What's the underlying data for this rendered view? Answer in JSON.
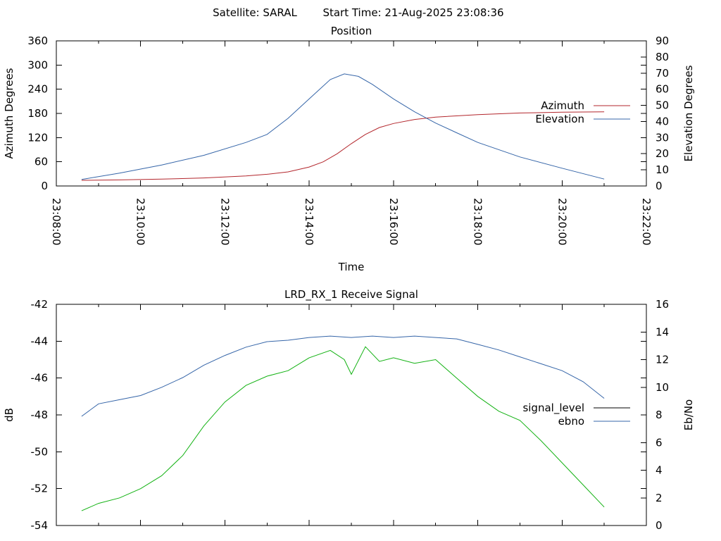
{
  "header": {
    "satellite_label": "Satellite: SARAL",
    "start_time_label": "Start Time: 21-Aug-2025 23:08:36"
  },
  "colors": {
    "azimuth": "#b3262c",
    "elevation": "#3565a8",
    "signal_level": "#000000",
    "ebno_line": "#3565a8",
    "signal_trace": "#13b213"
  },
  "chart_data": [
    {
      "type": "line",
      "title": "Position",
      "xlabel": "Time",
      "ylabel": "Azimuth Degrees",
      "y2label": "Elevation Degrees",
      "xlim": [
        "23:08:00",
        "23:22:00"
      ],
      "ylim": [
        0,
        360
      ],
      "y2lim": [
        0,
        90
      ],
      "x_ticks": [
        "23:08:00",
        "23:10:00",
        "23:12:00",
        "23:14:00",
        "23:16:00",
        "23:18:00",
        "23:20:00",
        "23:22:00"
      ],
      "y_ticks": [
        "0",
        "60",
        "120",
        "180",
        "240",
        "300",
        "360"
      ],
      "y2_ticks": [
        "0",
        "10",
        "20",
        "30",
        "40",
        "50",
        "60",
        "70",
        "80",
        "90"
      ],
      "grid": false,
      "legend_position": "right",
      "series": [
        {
          "name": "Azimuth",
          "axis": "left",
          "x": [
            "23:08:36",
            "23:09:30",
            "23:10:30",
            "23:11:30",
            "23:12:30",
            "23:13:00",
            "23:13:30",
            "23:14:00",
            "23:14:20",
            "23:14:40",
            "23:15:00",
            "23:15:20",
            "23:15:40",
            "23:16:00",
            "23:16:30",
            "23:17:00",
            "23:18:00",
            "23:19:00",
            "23:20:00",
            "23:21:00"
          ],
          "values": [
            14,
            15,
            17,
            20,
            25,
            29,
            35,
            47,
            60,
            80,
            105,
            128,
            145,
            155,
            165,
            171,
            177,
            181,
            183,
            184
          ]
        },
        {
          "name": "Elevation",
          "axis": "right",
          "x": [
            "23:08:36",
            "23:09:30",
            "23:10:30",
            "23:11:30",
            "23:12:30",
            "23:13:00",
            "23:13:30",
            "23:14:00",
            "23:14:30",
            "23:14:50",
            "23:15:10",
            "23:15:30",
            "23:16:00",
            "23:16:30",
            "23:17:00",
            "23:17:30",
            "23:18:00",
            "23:19:00",
            "23:20:00",
            "23:21:00"
          ],
          "values": [
            4,
            8,
            13,
            19,
            27,
            32,
            42,
            54,
            66,
            69.5,
            68,
            63,
            54,
            46,
            39,
            33,
            27,
            18,
            11,
            4.3
          ]
        }
      ]
    },
    {
      "type": "line",
      "title": "LRD_RX_1 Receive Signal",
      "xlabel": "",
      "ylabel": "dB",
      "y2label": "Eb/No",
      "xlim": [
        "23:08:00",
        "23:22:00"
      ],
      "ylim": [
        -54,
        -42
      ],
      "y2lim": [
        0,
        16
      ],
      "y_ticks": [
        "-42",
        "-44",
        "-46",
        "-48",
        "-50",
        "-52",
        "-54"
      ],
      "y2_ticks": [
        "0",
        "2",
        "4",
        "6",
        "8",
        "10",
        "12",
        "14",
        "16"
      ],
      "grid": false,
      "legend_position": "right",
      "series": [
        {
          "name": "signal_level",
          "axis": "left",
          "x": [
            "23:08:36",
            "23:09:00",
            "23:09:30",
            "23:10:00",
            "23:10:30",
            "23:11:00",
            "23:11:30",
            "23:12:00",
            "23:12:30",
            "23:13:00",
            "23:13:30",
            "23:14:00",
            "23:14:30",
            "23:14:50",
            "23:15:00",
            "23:15:20",
            "23:15:40",
            "23:16:00",
            "23:16:30",
            "23:17:00",
            "23:17:30",
            "23:18:00",
            "23:18:30",
            "23:19:00",
            "23:19:30",
            "23:20:00",
            "23:20:30",
            "23:21:00"
          ],
          "values": [
            -53.2,
            -52.8,
            -52.5,
            -52.0,
            -51.3,
            -50.2,
            -48.6,
            -47.3,
            -46.4,
            -45.9,
            -45.6,
            -44.9,
            -44.5,
            -45.0,
            -45.8,
            -44.3,
            -45.1,
            -44.9,
            -45.2,
            -45.0,
            -46.0,
            -47.0,
            -47.8,
            -48.3,
            -49.4,
            -50.6,
            -51.8,
            -53.0
          ]
        },
        {
          "name": "ebno",
          "axis": "right",
          "x": [
            "23:08:36",
            "23:09:00",
            "23:09:30",
            "23:10:00",
            "23:10:30",
            "23:11:00",
            "23:11:30",
            "23:12:00",
            "23:12:30",
            "23:13:00",
            "23:13:30",
            "23:14:00",
            "23:14:30",
            "23:15:00",
            "23:15:30",
            "23:16:00",
            "23:16:30",
            "23:17:00",
            "23:17:30",
            "23:18:00",
            "23:18:30",
            "23:19:00",
            "23:19:30",
            "23:20:00",
            "23:20:30",
            "23:21:00"
          ],
          "values": [
            7.9,
            8.8,
            9.1,
            9.4,
            10.0,
            10.7,
            11.6,
            12.3,
            12.9,
            13.3,
            13.4,
            13.6,
            13.7,
            13.6,
            13.7,
            13.6,
            13.7,
            13.6,
            13.5,
            13.1,
            12.7,
            12.2,
            11.7,
            11.2,
            10.4,
            9.2
          ]
        }
      ]
    }
  ]
}
